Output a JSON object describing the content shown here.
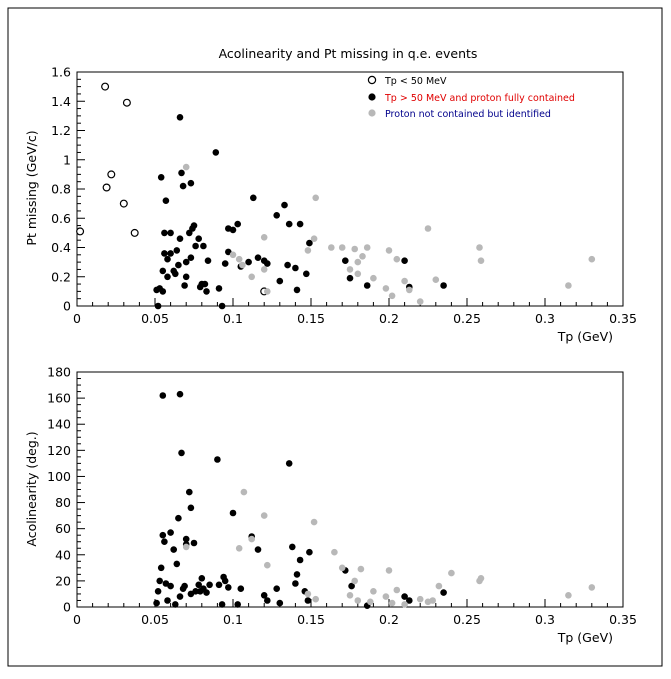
{
  "chart_data": [
    {
      "type": "scatter",
      "title": "Acolinearity and Pt missing in q.e. events",
      "xlabel": "Tp (GeV)",
      "ylabel": "Pt missing (GeV/c)",
      "xlim": [
        0,
        0.35
      ],
      "ylim": [
        0,
        1.6
      ],
      "x_ticks": [
        "0",
        "0.05",
        "0.1",
        "0.15",
        "0.2",
        "0.25",
        "0.3",
        "0.35"
      ],
      "y_ticks": [
        "0",
        "0.2",
        "0.4",
        "0.6",
        "0.8",
        "1",
        "1.2",
        "1.4",
        "1.6"
      ],
      "grid": false,
      "legend_position": "top-right",
      "legend": [
        {
          "label": "Tp < 50 MeV",
          "marker": "open-circle",
          "color": "#000000",
          "text_color": "#000000"
        },
        {
          "label": "Tp > 50 MeV and proton fully contained",
          "marker": "filled-circle",
          "color": "#000000",
          "text_color": "#e00000"
        },
        {
          "label": "Proton not contained but identified",
          "marker": "filled-circle",
          "color": "#b8b8b8",
          "text_color": "#00008b"
        }
      ],
      "series": [
        {
          "name": "Tp < 50 MeV",
          "marker": "open",
          "color": "#000000",
          "points": [
            [
              0.002,
              0.51
            ],
            [
              0.018,
              1.5
            ],
            [
              0.019,
              0.81
            ],
            [
              0.022,
              0.9
            ],
            [
              0.03,
              0.7
            ],
            [
              0.032,
              1.39
            ],
            [
              0.037,
              0.5
            ],
            [
              0.12,
              0.1
            ]
          ]
        },
        {
          "name": "Tp > 50 MeV and proton fully contained",
          "marker": "filled",
          "color": "#000000",
          "points": [
            [
              0.051,
              0.11
            ],
            [
              0.052,
              0.0
            ],
            [
              0.053,
              0.12
            ],
            [
              0.054,
              0.88
            ],
            [
              0.055,
              0.1
            ],
            [
              0.055,
              0.24
            ],
            [
              0.056,
              0.5
            ],
            [
              0.056,
              0.36
            ],
            [
              0.057,
              0.72
            ],
            [
              0.058,
              0.32
            ],
            [
              0.058,
              0.2
            ],
            [
              0.06,
              0.5
            ],
            [
              0.06,
              0.36
            ],
            [
              0.062,
              0.24
            ],
            [
              0.063,
              0.22
            ],
            [
              0.064,
              0.38
            ],
            [
              0.065,
              0.28
            ],
            [
              0.066,
              1.29
            ],
            [
              0.066,
              0.46
            ],
            [
              0.067,
              0.91
            ],
            [
              0.068,
              0.82
            ],
            [
              0.069,
              0.14
            ],
            [
              0.07,
              0.3
            ],
            [
              0.07,
              0.2
            ],
            [
              0.072,
              0.5
            ],
            [
              0.073,
              0.84
            ],
            [
              0.073,
              0.33
            ],
            [
              0.074,
              0.53
            ],
            [
              0.075,
              0.55
            ],
            [
              0.076,
              0.41
            ],
            [
              0.078,
              0.46
            ],
            [
              0.079,
              0.13
            ],
            [
              0.08,
              0.15
            ],
            [
              0.081,
              0.41
            ],
            [
              0.082,
              0.15
            ],
            [
              0.083,
              0.1
            ],
            [
              0.084,
              0.31
            ],
            [
              0.089,
              1.05
            ],
            [
              0.091,
              0.12
            ],
            [
              0.093,
              0.0
            ],
            [
              0.095,
              0.29
            ],
            [
              0.097,
              0.37
            ],
            [
              0.097,
              0.53
            ],
            [
              0.1,
              0.52
            ],
            [
              0.103,
              0.56
            ],
            [
              0.105,
              0.27
            ],
            [
              0.11,
              0.3
            ],
            [
              0.113,
              0.74
            ],
            [
              0.116,
              0.33
            ],
            [
              0.12,
              0.31
            ],
            [
              0.122,
              0.29
            ],
            [
              0.128,
              0.62
            ],
            [
              0.13,
              0.17
            ],
            [
              0.133,
              0.69
            ],
            [
              0.135,
              0.28
            ],
            [
              0.136,
              0.56
            ],
            [
              0.14,
              0.26
            ],
            [
              0.141,
              0.11
            ],
            [
              0.143,
              0.56
            ],
            [
              0.147,
              0.22
            ],
            [
              0.149,
              0.43
            ],
            [
              0.172,
              0.31
            ],
            [
              0.175,
              0.19
            ],
            [
              0.186,
              0.14
            ],
            [
              0.21,
              0.31
            ],
            [
              0.213,
              0.13
            ],
            [
              0.235,
              0.14
            ]
          ]
        },
        {
          "name": "Proton not contained but identified",
          "marker": "filled",
          "color": "#b8b8b8",
          "points": [
            [
              0.07,
              0.95
            ],
            [
              0.1,
              0.35
            ],
            [
              0.104,
              0.32
            ],
            [
              0.106,
              0.28
            ],
            [
              0.112,
              0.2
            ],
            [
              0.12,
              0.47
            ],
            [
              0.12,
              0.25
            ],
            [
              0.122,
              0.1
            ],
            [
              0.148,
              0.38
            ],
            [
              0.152,
              0.46
            ],
            [
              0.153,
              0.74
            ],
            [
              0.163,
              0.4
            ],
            [
              0.17,
              0.4
            ],
            [
              0.175,
              0.25
            ],
            [
              0.178,
              0.39
            ],
            [
              0.18,
              0.3
            ],
            [
              0.18,
              0.22
            ],
            [
              0.183,
              0.34
            ],
            [
              0.186,
              0.4
            ],
            [
              0.19,
              0.19
            ],
            [
              0.198,
              0.12
            ],
            [
              0.2,
              0.38
            ],
            [
              0.202,
              0.07
            ],
            [
              0.205,
              0.32
            ],
            [
              0.21,
              0.17
            ],
            [
              0.213,
              0.11
            ],
            [
              0.22,
              0.03
            ],
            [
              0.225,
              0.53
            ],
            [
              0.23,
              0.18
            ],
            [
              0.258,
              0.4
            ],
            [
              0.259,
              0.31
            ],
            [
              0.315,
              0.14
            ],
            [
              0.33,
              0.32
            ]
          ]
        }
      ]
    },
    {
      "type": "scatter",
      "title": "",
      "xlabel": "Tp (GeV)",
      "ylabel": "Acolinearity (deg.)",
      "xlim": [
        0,
        0.35
      ],
      "ylim": [
        0,
        180
      ],
      "x_ticks": [
        "0",
        "0.05",
        "0.1",
        "0.15",
        "0.2",
        "0.25",
        "0.3",
        "0.35"
      ],
      "y_ticks": [
        "0",
        "20",
        "40",
        "60",
        "80",
        "100",
        "120",
        "140",
        "160",
        "180"
      ],
      "grid": false,
      "series": [
        {
          "name": "Tp > 50 MeV and proton fully contained",
          "marker": "filled",
          "color": "#000000",
          "points": [
            [
              0.051,
              3
            ],
            [
              0.052,
              12
            ],
            [
              0.053,
              20
            ],
            [
              0.054,
              30
            ],
            [
              0.055,
              162
            ],
            [
              0.055,
              55
            ],
            [
              0.056,
              50
            ],
            [
              0.057,
              18
            ],
            [
              0.058,
              5
            ],
            [
              0.06,
              57
            ],
            [
              0.06,
              16
            ],
            [
              0.062,
              44
            ],
            [
              0.063,
              2
            ],
            [
              0.064,
              33
            ],
            [
              0.065,
              68
            ],
            [
              0.066,
              8
            ],
            [
              0.066,
              163
            ],
            [
              0.067,
              118
            ],
            [
              0.068,
              14
            ],
            [
              0.069,
              16
            ],
            [
              0.07,
              48
            ],
            [
              0.07,
              52
            ],
            [
              0.072,
              88
            ],
            [
              0.073,
              10
            ],
            [
              0.073,
              76
            ],
            [
              0.075,
              49
            ],
            [
              0.076,
              12
            ],
            [
              0.078,
              17
            ],
            [
              0.079,
              12
            ],
            [
              0.08,
              22
            ],
            [
              0.081,
              14
            ],
            [
              0.083,
              11
            ],
            [
              0.085,
              17
            ],
            [
              0.09,
              113
            ],
            [
              0.091,
              17
            ],
            [
              0.093,
              2
            ],
            [
              0.094,
              23
            ],
            [
              0.095,
              20
            ],
            [
              0.097,
              15
            ],
            [
              0.1,
              72
            ],
            [
              0.103,
              2
            ],
            [
              0.105,
              14
            ],
            [
              0.112,
              54
            ],
            [
              0.116,
              44
            ],
            [
              0.12,
              9
            ],
            [
              0.122,
              5
            ],
            [
              0.128,
              14
            ],
            [
              0.13,
              3
            ],
            [
              0.136,
              110
            ],
            [
              0.138,
              46
            ],
            [
              0.14,
              18
            ],
            [
              0.141,
              25
            ],
            [
              0.143,
              36
            ],
            [
              0.146,
              12
            ],
            [
              0.148,
              5
            ],
            [
              0.149,
              42
            ],
            [
              0.172,
              28
            ],
            [
              0.176,
              16
            ],
            [
              0.186,
              1
            ],
            [
              0.21,
              8
            ],
            [
              0.213,
              5
            ],
            [
              0.235,
              11
            ]
          ]
        },
        {
          "name": "Proton not contained but identified",
          "marker": "filled",
          "color": "#b8b8b8",
          "points": [
            [
              0.07,
              46
            ],
            [
              0.104,
              45
            ],
            [
              0.107,
              88
            ],
            [
              0.112,
              52
            ],
            [
              0.12,
              70
            ],
            [
              0.122,
              32
            ],
            [
              0.148,
              10
            ],
            [
              0.152,
              65
            ],
            [
              0.153,
              6
            ],
            [
              0.165,
              42
            ],
            [
              0.17,
              30
            ],
            [
              0.175,
              9
            ],
            [
              0.178,
              20
            ],
            [
              0.18,
              5
            ],
            [
              0.182,
              29
            ],
            [
              0.188,
              4
            ],
            [
              0.19,
              12
            ],
            [
              0.198,
              8
            ],
            [
              0.2,
              28
            ],
            [
              0.202,
              3
            ],
            [
              0.205,
              13
            ],
            [
              0.21,
              2
            ],
            [
              0.22,
              6
            ],
            [
              0.225,
              4
            ],
            [
              0.228,
              5
            ],
            [
              0.232,
              16
            ],
            [
              0.24,
              26
            ],
            [
              0.258,
              20
            ],
            [
              0.259,
              22
            ],
            [
              0.315,
              9
            ],
            [
              0.33,
              15
            ]
          ]
        }
      ]
    }
  ]
}
